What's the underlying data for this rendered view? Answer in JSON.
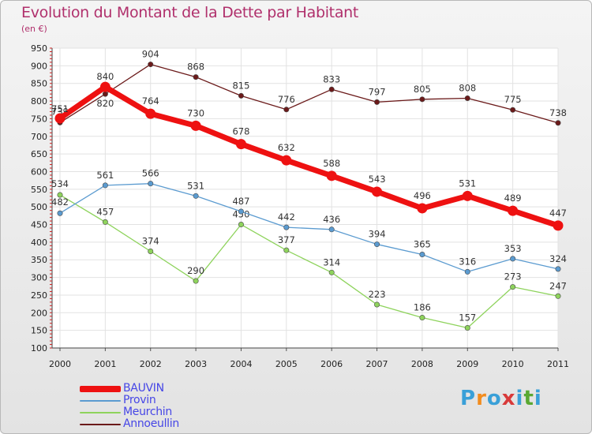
{
  "title": "Evolution du Montant de la Dette par Habitant",
  "unit": "(en €)",
  "logo": {
    "text": "Proxiti",
    "colors": [
      "#3aa0d8",
      "#f28c1e",
      "#3aa0d8",
      "#d83a3a",
      "#3aa0d8",
      "#5aa832",
      "#3aa0d8"
    ]
  },
  "chart_data": {
    "type": "line",
    "x": [
      "2000",
      "2001",
      "2002",
      "2003",
      "2004",
      "2005",
      "2006",
      "2007",
      "2008",
      "2009",
      "2010",
      "2011"
    ],
    "ylim": [
      100,
      950
    ],
    "yticks": [
      100,
      150,
      200,
      250,
      300,
      350,
      400,
      450,
      500,
      550,
      600,
      650,
      700,
      750,
      800,
      850,
      900,
      950
    ],
    "grid": true,
    "legend_position": "bottom-left",
    "series": [
      {
        "name": "BAUVIN",
        "color": "#ee1111",
        "values": [
          751,
          840,
          764,
          730,
          678,
          632,
          588,
          543,
          496,
          531,
          489,
          447
        ]
      },
      {
        "name": "Provin",
        "color": "#5b9bd0",
        "values": [
          482,
          561,
          566,
          531,
          487,
          442,
          436,
          394,
          365,
          316,
          353,
          324
        ]
      },
      {
        "name": "Meurchin",
        "color": "#8ed35c",
        "values": [
          534,
          457,
          374,
          290,
          450,
          377,
          314,
          223,
          186,
          157,
          273,
          247
        ]
      },
      {
        "name": "Annoeullin",
        "color": "#6b1a1a",
        "values": [
          739,
          820,
          904,
          868,
          815,
          776,
          833,
          797,
          805,
          808,
          775,
          738
        ]
      }
    ]
  }
}
